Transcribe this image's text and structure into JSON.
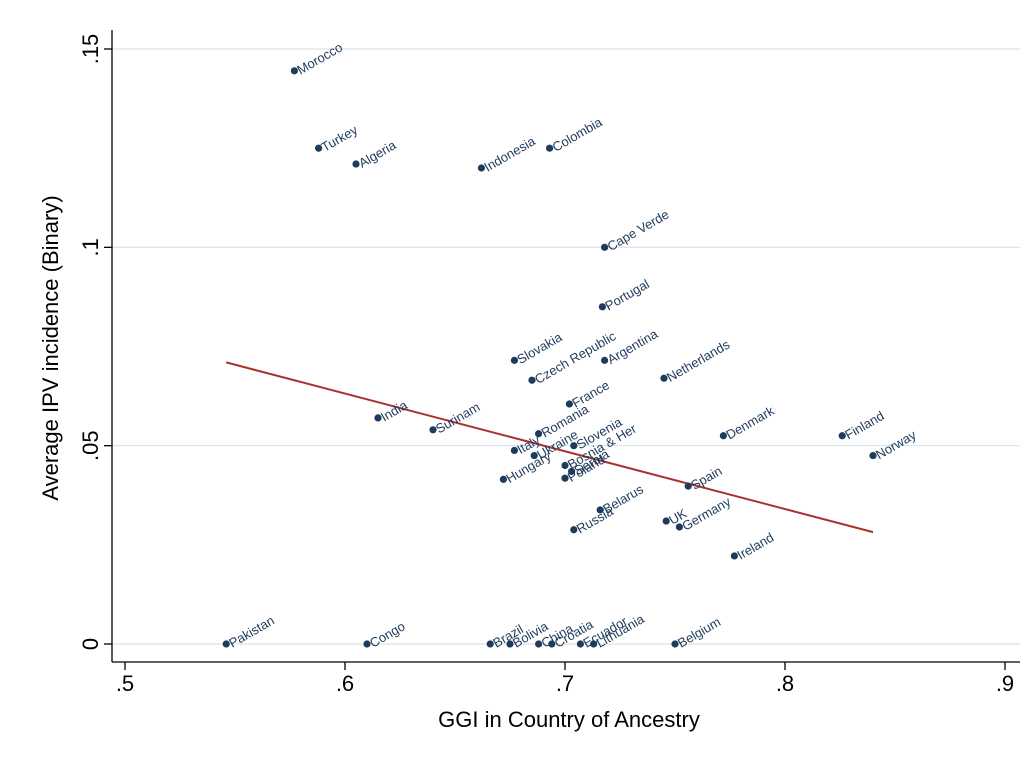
{
  "chart_data": {
    "type": "scatter",
    "title": "",
    "xlabel": "GGI in Country of Ancestry",
    "ylabel": "Average IPV incidence (Binary)",
    "xlim": [
      0.5,
      0.9
    ],
    "ylim": [
      0,
      0.15
    ],
    "xticks": [
      {
        "value": 0.5,
        "label": ".5"
      },
      {
        "value": 0.6,
        "label": ".6"
      },
      {
        "value": 0.7,
        "label": ".7"
      },
      {
        "value": 0.8,
        "label": ".8"
      },
      {
        "value": 0.9,
        "label": ".9"
      }
    ],
    "yticks": [
      {
        "value": 0,
        "label": "0"
      },
      {
        "value": 0.05,
        "label": ".05"
      },
      {
        "value": 0.1,
        "label": ".1"
      },
      {
        "value": 0.15,
        "label": ".15"
      }
    ],
    "grid": "horizontal",
    "colors": {
      "points": "#1f3b5c",
      "labels": "#1f3b5c",
      "fit_line": "#a9322e",
      "grid": "#d9e3e8",
      "axis": "#000000"
    },
    "points": [
      {
        "label": "Morocco",
        "x": 0.577,
        "y": 0.1445
      },
      {
        "label": "Turkey",
        "x": 0.588,
        "y": 0.125
      },
      {
        "label": "Algeria",
        "x": 0.605,
        "y": 0.121
      },
      {
        "label": "Indonesia",
        "x": 0.662,
        "y": 0.12
      },
      {
        "label": "Colombia",
        "x": 0.693,
        "y": 0.125
      },
      {
        "label": "Cape Verde",
        "x": 0.718,
        "y": 0.1
      },
      {
        "label": "Portugal",
        "x": 0.717,
        "y": 0.085
      },
      {
        "label": "Slovakia",
        "x": 0.677,
        "y": 0.0715
      },
      {
        "label": "Czech Republic",
        "x": 0.685,
        "y": 0.0665
      },
      {
        "label": "Argentina",
        "x": 0.718,
        "y": 0.0715
      },
      {
        "label": "Netherlands",
        "x": 0.745,
        "y": 0.067
      },
      {
        "label": "France",
        "x": 0.702,
        "y": 0.0605
      },
      {
        "label": "India",
        "x": 0.615,
        "y": 0.057
      },
      {
        "label": "Surinam",
        "x": 0.64,
        "y": 0.054
      },
      {
        "label": "Romania",
        "x": 0.688,
        "y": 0.053
      },
      {
        "label": "Italy",
        "x": 0.677,
        "y": 0.0488
      },
      {
        "label": "Ukraine",
        "x": 0.686,
        "y": 0.0475
      },
      {
        "label": "Hungary",
        "x": 0.672,
        "y": 0.0415
      },
      {
        "label": "Slovenia",
        "x": 0.704,
        "y": 0.05
      },
      {
        "label": "Bosnia & Her",
        "x": 0.7,
        "y": 0.045
      },
      {
        "label": "Serbia",
        "x": 0.703,
        "y": 0.0435
      },
      {
        "label": "Poland",
        "x": 0.7,
        "y": 0.0418
      },
      {
        "label": "Denmark",
        "x": 0.772,
        "y": 0.0525
      },
      {
        "label": "Finland",
        "x": 0.826,
        "y": 0.0525
      },
      {
        "label": "Norway",
        "x": 0.84,
        "y": 0.0475
      },
      {
        "label": "Spain",
        "x": 0.756,
        "y": 0.0398
      },
      {
        "label": "Belarus",
        "x": 0.716,
        "y": 0.0338
      },
      {
        "label": "Russia",
        "x": 0.704,
        "y": 0.0288
      },
      {
        "label": "UK",
        "x": 0.746,
        "y": 0.031
      },
      {
        "label": "Germany",
        "x": 0.752,
        "y": 0.0295
      },
      {
        "label": "Ireland",
        "x": 0.777,
        "y": 0.0222
      },
      {
        "label": "Pakistan",
        "x": 0.546,
        "y": 0
      },
      {
        "label": "Congo",
        "x": 0.61,
        "y": 0
      },
      {
        "label": "Brazil",
        "x": 0.666,
        "y": 0
      },
      {
        "label": "Bolivia",
        "x": 0.675,
        "y": 0
      },
      {
        "label": "China",
        "x": 0.688,
        "y": 0
      },
      {
        "label": "Croatia",
        "x": 0.694,
        "y": 0
      },
      {
        "label": "Ecuador",
        "x": 0.707,
        "y": 0
      },
      {
        "label": "Lithuania",
        "x": 0.713,
        "y": 0
      },
      {
        "label": "Belgium",
        "x": 0.75,
        "y": 0
      }
    ],
    "fit_line": {
      "x": [
        0.546,
        0.84
      ],
      "y": [
        0.071,
        0.0282
      ]
    }
  }
}
